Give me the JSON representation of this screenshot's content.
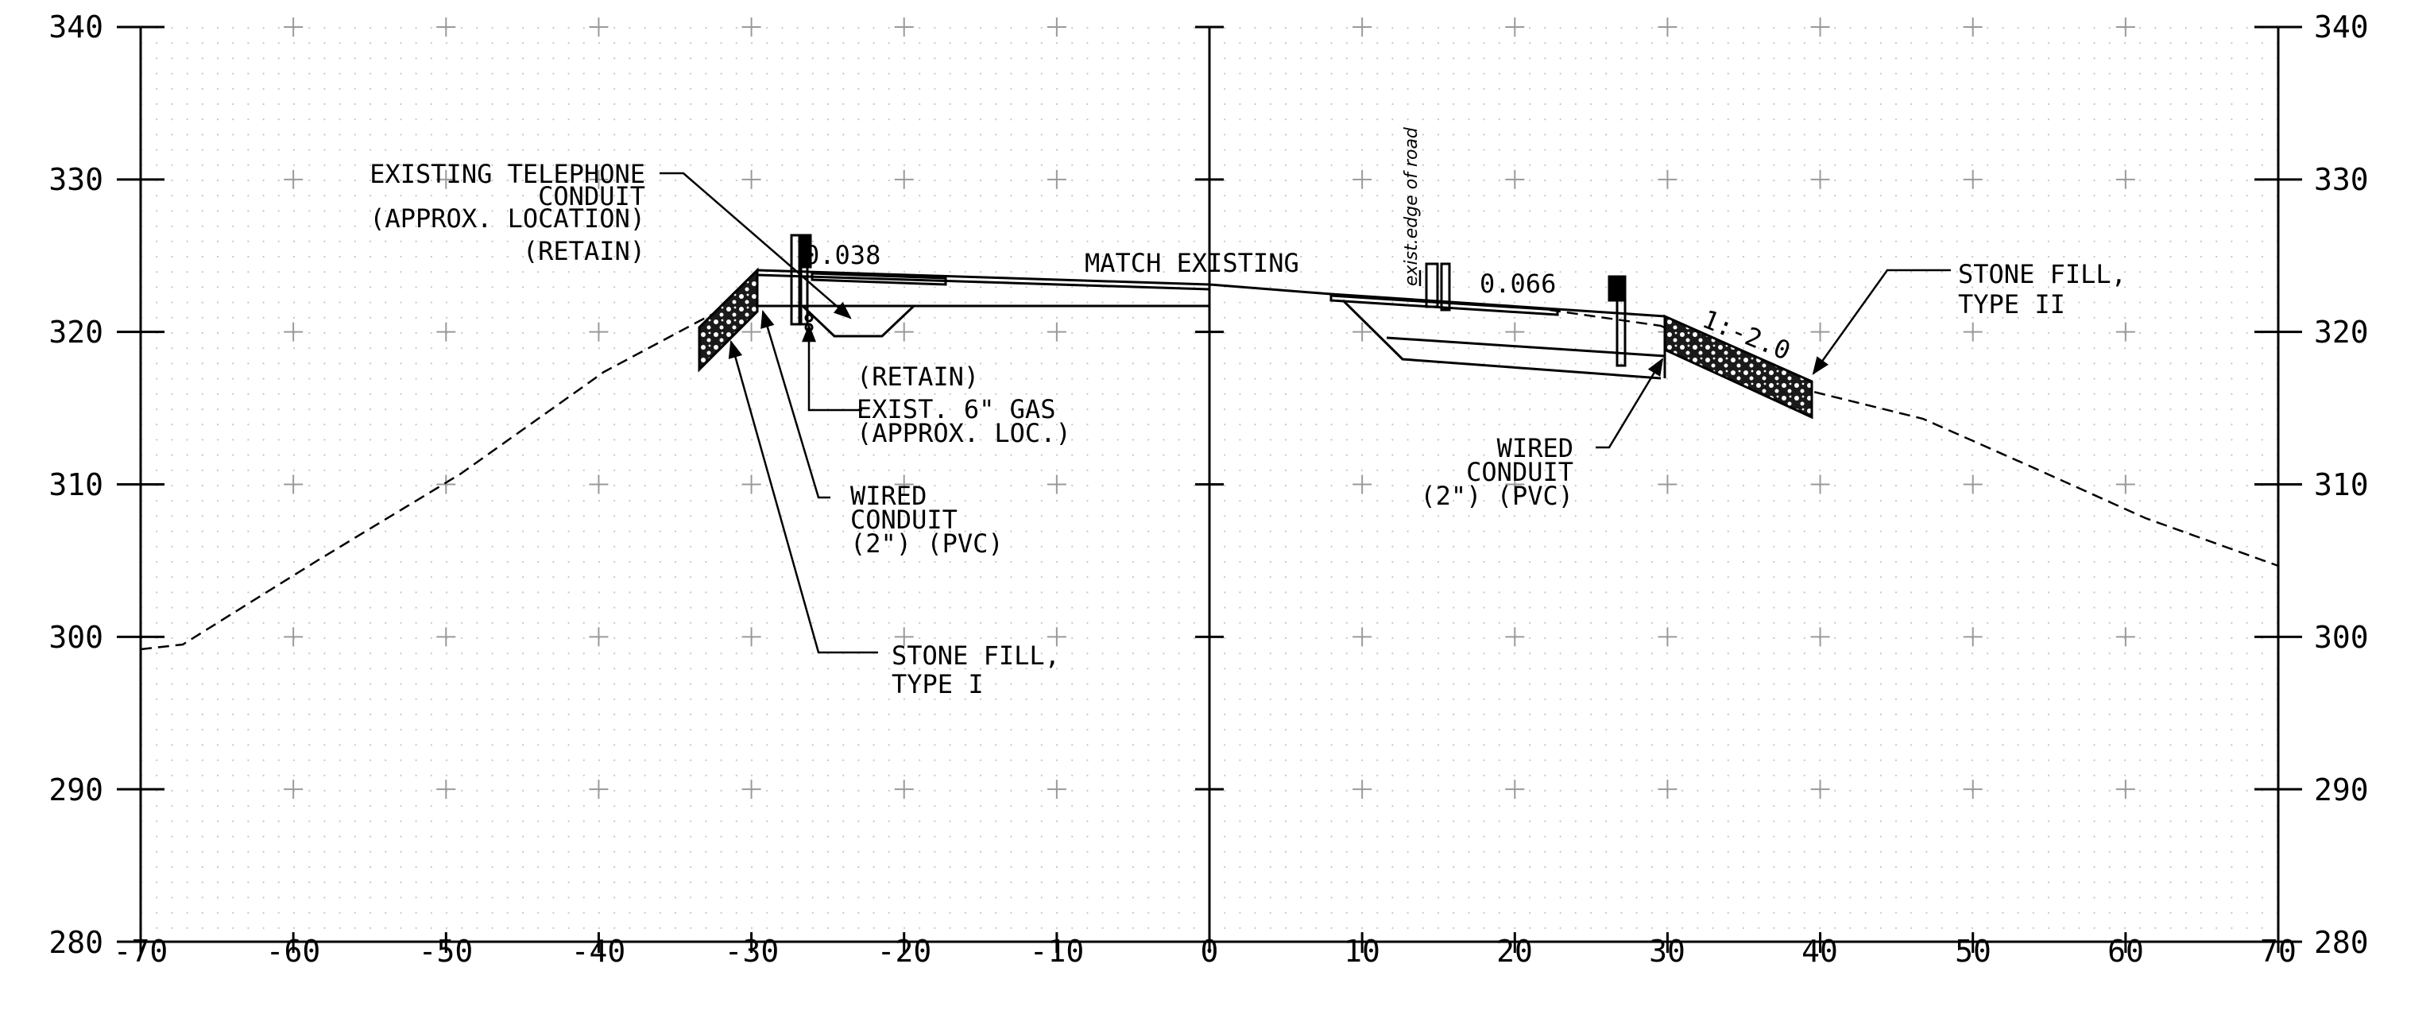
{
  "axes": {
    "x_ticks": [
      "-70",
      "-60",
      "-50",
      "-40",
      "-30",
      "-20",
      "-10",
      "0",
      "10",
      "20",
      "30",
      "40",
      "50",
      "60",
      "70"
    ],
    "y_ticks": [
      "340",
      "330",
      "320",
      "310",
      "300",
      "290",
      "280"
    ]
  },
  "labels": {
    "telephone": [
      "EXISTING TELEPHONE",
      "CONDUIT",
      "(APPROX. LOCATION)",
      "(RETAIN)"
    ],
    "slope_left": "0.038",
    "match_existing": "MATCH EXISTING",
    "edge_of_road": "exist.edge of road",
    "slope_right": "0.066",
    "side_slope": "1:-2.0",
    "gas": [
      "(RETAIN)",
      "EXIST. 6\" GAS",
      "(APPROX. LOC.)"
    ],
    "conduit_left": [
      "WIRED",
      "CONDUIT",
      "(2\") (PVC)"
    ],
    "conduit_right": [
      "WIRED",
      "CONDUIT",
      "(2\") (PVC)"
    ],
    "stone_left": [
      "STONE FILL,",
      "TYPE I"
    ],
    "stone_right": [
      "STONE FILL,",
      "TYPE II"
    ]
  }
}
